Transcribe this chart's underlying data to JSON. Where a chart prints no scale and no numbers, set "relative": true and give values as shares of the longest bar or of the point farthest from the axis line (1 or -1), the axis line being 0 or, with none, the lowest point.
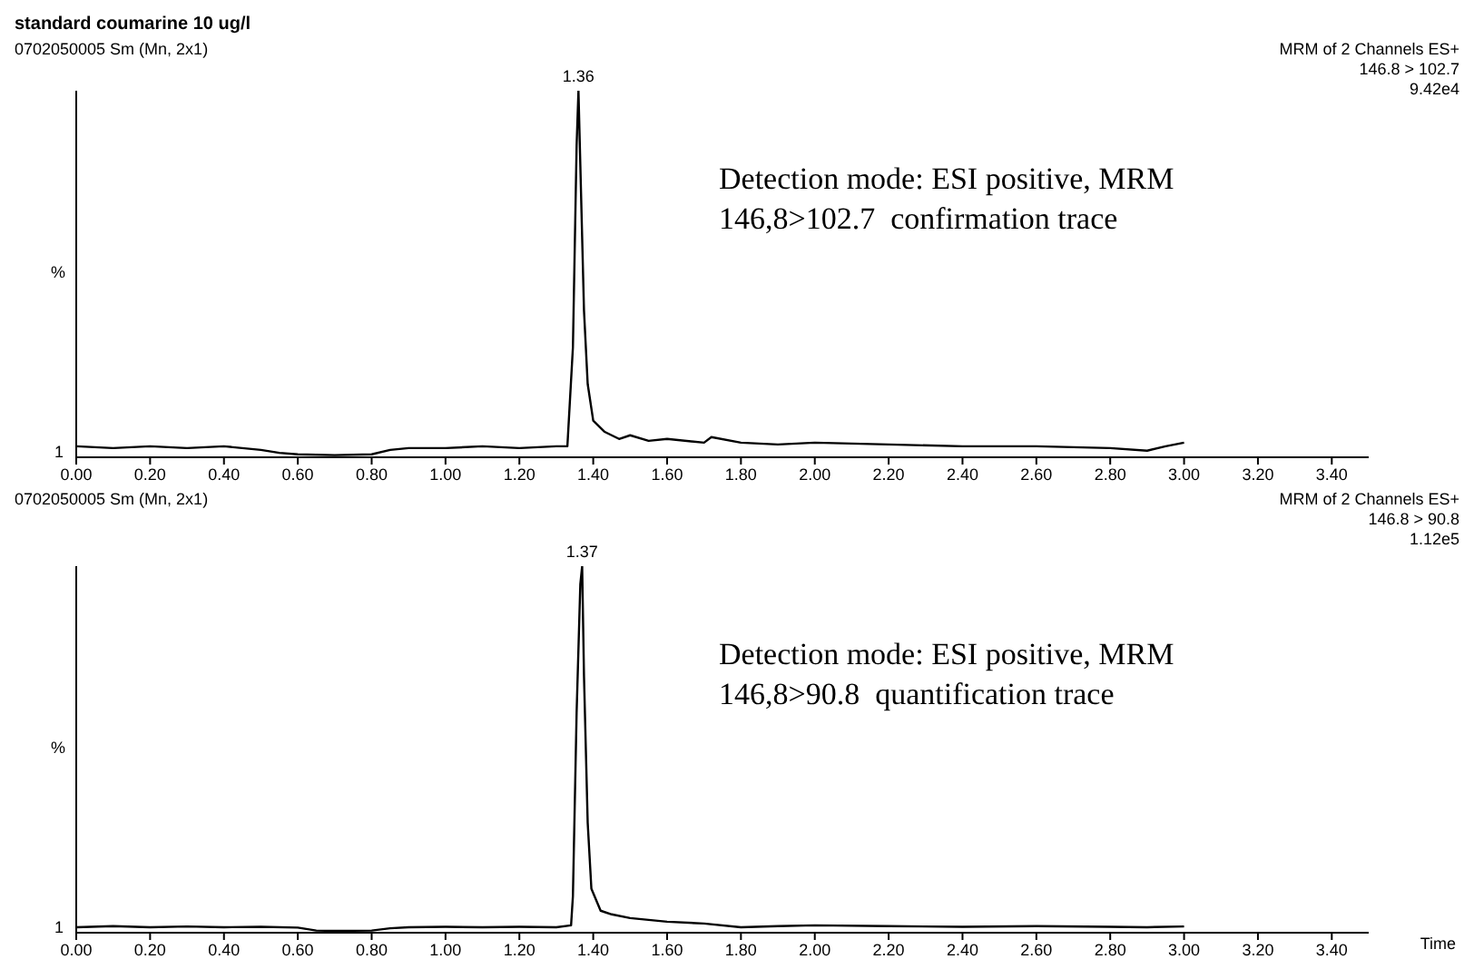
{
  "chart_data": [
    {
      "type": "line",
      "title": "standard coumarine 10 ug/l",
      "subtitle": "0702050005 Sm (Mn, 2x1)",
      "ylabel": "%",
      "relative": true,
      "grid": false,
      "marker": "none",
      "line_style": "solid",
      "annotations": [
        "MRM of 2 Channels ES+",
        "146.8 > 102.7",
        "9.42e4",
        "Detection mode: ESI positive, MRM",
        "146,8>102.7  confirmation trace",
        "1",
        {
          "text": "1.36",
          "x": 1.36,
          "y": 1
        }
      ],
      "xlim": [
        0,
        3.5
      ],
      "xticks": [
        {
          "value": 0,
          "label": "0.00"
        },
        {
          "value": 0.2,
          "label": "0.20"
        },
        {
          "value": 0.4,
          "label": "0.40"
        },
        {
          "value": 0.6,
          "label": "0.60"
        },
        {
          "value": 0.8,
          "label": "0.80"
        },
        {
          "value": 1,
          "label": "1.00"
        },
        {
          "value": 1.2,
          "label": "1.20"
        },
        {
          "value": 1.4,
          "label": "1.40"
        },
        {
          "value": 1.6,
          "label": "1.60"
        },
        {
          "value": 1.8,
          "label": "1.80"
        },
        {
          "value": 2,
          "label": "2.00"
        },
        {
          "value": 2.2,
          "label": "2.20"
        },
        {
          "value": 2.4,
          "label": "2.40"
        },
        {
          "value": 2.6,
          "label": "2.60"
        },
        {
          "value": 2.8,
          "label": "2.80"
        },
        {
          "value": 3,
          "label": "3.00"
        },
        {
          "value": 3.2,
          "label": "3.20"
        },
        {
          "value": 3.4,
          "label": "3.40"
        }
      ],
      "series": [
        {
          "color": "#000000",
          "x": [
            0,
            0.1,
            0.2,
            0.3,
            0.4,
            0.5,
            0.55,
            0.6,
            0.7,
            0.8,
            0.85,
            0.9,
            1.0,
            1.1,
            1.2,
            1.3,
            1.33,
            1.345,
            1.355,
            1.36,
            1.365,
            1.375,
            1.385,
            1.4,
            1.43,
            1.47,
            1.5,
            1.55,
            1.6,
            1.7,
            1.72,
            1.8,
            1.9,
            2.0,
            2.2,
            2.4,
            2.6,
            2.8,
            2.9,
            2.95,
            3.0
          ],
          "values": [
            0.03,
            0.025,
            0.03,
            0.025,
            0.03,
            0.02,
            0.012,
            0.008,
            0.006,
            0.008,
            0.02,
            0.025,
            0.025,
            0.03,
            0.025,
            0.03,
            0.03,
            0.3,
            0.85,
            1,
            0.8,
            0.4,
            0.2,
            0.1,
            0.07,
            0.05,
            0.06,
            0.045,
            0.05,
            0.04,
            0.055,
            0.04,
            0.035,
            0.04,
            0.035,
            0.03,
            0.03,
            0.025,
            0.018,
            0.03,
            0.04
          ]
        }
      ]
    },
    {
      "type": "line",
      "subtitle": "0702050005 Sm (Mn, 2x1)",
      "ylabel": "%",
      "xlabel": "Time",
      "relative": true,
      "grid": false,
      "marker": "none",
      "line_style": "solid",
      "annotations": [
        "MRM of 2 Channels ES+",
        "146.8 > 90.8",
        "1.12e5",
        "Detection mode: ESI positive, MRM",
        "146,8>90.8  quantification trace",
        "1",
        {
          "text": "1.37",
          "x": 1.37,
          "y": 1
        }
      ],
      "xlim": [
        0,
        3.5
      ],
      "xticks": [
        {
          "value": 0,
          "label": "0.00"
        },
        {
          "value": 0.2,
          "label": "0.20"
        },
        {
          "value": 0.4,
          "label": "0.40"
        },
        {
          "value": 0.6,
          "label": "0.60"
        },
        {
          "value": 0.8,
          "label": "0.80"
        },
        {
          "value": 1,
          "label": "1.00"
        },
        {
          "value": 1.2,
          "label": "1.20"
        },
        {
          "value": 1.4,
          "label": "1.40"
        },
        {
          "value": 1.6,
          "label": "1.60"
        },
        {
          "value": 1.8,
          "label": "1.80"
        },
        {
          "value": 2,
          "label": "2.00"
        },
        {
          "value": 2.2,
          "label": "2.20"
        },
        {
          "value": 2.4,
          "label": "2.40"
        },
        {
          "value": 2.6,
          "label": "2.60"
        },
        {
          "value": 2.8,
          "label": "2.80"
        },
        {
          "value": 3,
          "label": "3.00"
        },
        {
          "value": 3.2,
          "label": "3.20"
        },
        {
          "value": 3.4,
          "label": "3.40"
        }
      ],
      "series": [
        {
          "color": "#000000",
          "x": [
            0,
            0.1,
            0.2,
            0.3,
            0.4,
            0.5,
            0.6,
            0.65,
            0.7,
            0.8,
            0.85,
            0.9,
            1.0,
            1.1,
            1.2,
            1.3,
            1.34,
            1.345,
            1.355,
            1.365,
            1.37,
            1.375,
            1.385,
            1.395,
            1.42,
            1.45,
            1.5,
            1.6,
            1.7,
            1.8,
            1.9,
            2.0,
            2.2,
            2.4,
            2.6,
            2.8,
            2.9,
            3.0
          ],
          "values": [
            0.015,
            0.018,
            0.015,
            0.017,
            0.015,
            0.016,
            0.014,
            0.006,
            0.005,
            0.006,
            0.012,
            0.015,
            0.016,
            0.015,
            0.016,
            0.015,
            0.02,
            0.1,
            0.6,
            0.95,
            1,
            0.7,
            0.3,
            0.12,
            0.06,
            0.05,
            0.04,
            0.03,
            0.025,
            0.015,
            0.018,
            0.02,
            0.018,
            0.016,
            0.018,
            0.016,
            0.015,
            0.017
          ]
        }
      ]
    }
  ]
}
